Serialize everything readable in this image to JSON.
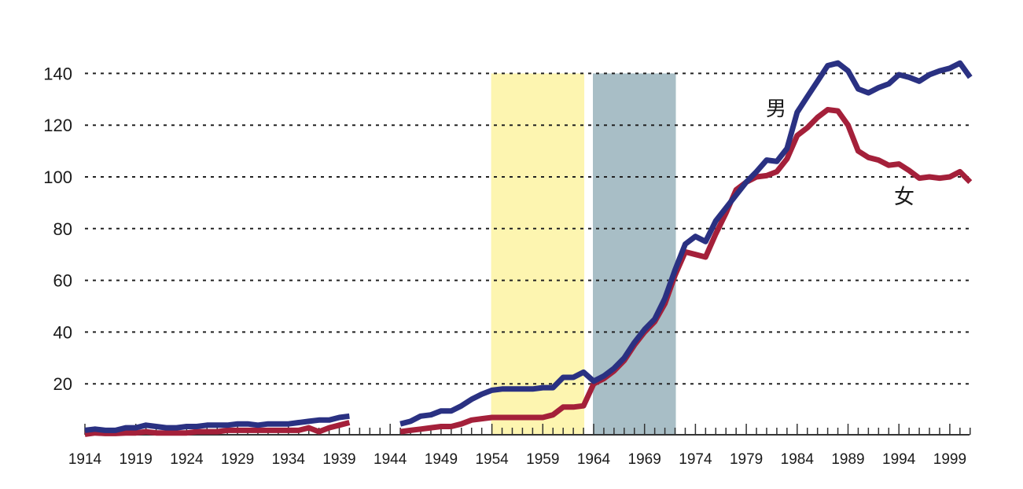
{
  "chart_data": {
    "type": "line",
    "title": "",
    "xlabel": "",
    "ylabel": "",
    "xlim": [
      1914,
      2001
    ],
    "ylim": [
      0,
      140
    ],
    "grid": true,
    "yticks": [
      20,
      40,
      60,
      80,
      100,
      120,
      140
    ],
    "xtick_labels": [
      1914,
      1919,
      1924,
      1929,
      1934,
      1939,
      1944,
      1949,
      1954,
      1959,
      1964,
      1969,
      1974,
      1979,
      1984,
      1989,
      1994,
      1999
    ],
    "shaded_periods": [
      {
        "name": "period-1",
        "from": 1954,
        "to": 1963,
        "color": "#fdf5b0"
      },
      {
        "name": "period-2",
        "from": 1964,
        "to": 1972,
        "color": "#a8bec6"
      }
    ],
    "series": [
      {
        "name": "男",
        "color": "#2a3182",
        "segments": [
          {
            "x": [
              1914,
              1915,
              1916,
              1917,
              1918,
              1919,
              1920,
              1921,
              1922,
              1923,
              1924,
              1925,
              1926,
              1927,
              1928,
              1929,
              1930,
              1931,
              1932,
              1933,
              1934,
              1935,
              1936,
              1937,
              1938,
              1939,
              1940
            ],
            "values": [
              2,
              2.5,
              2,
              2,
              3,
              3,
              4,
              3.5,
              3,
              3,
              3.5,
              3.5,
              4,
              4,
              4,
              4.5,
              4.5,
              4,
              4.5,
              4.5,
              4.5,
              5,
              5.5,
              6,
              6,
              7,
              7.5
            ]
          },
          {
            "x": [
              1945,
              1946,
              1947,
              1948,
              1949,
              1950,
              1951,
              1952,
              1953,
              1954,
              1955,
              1956,
              1957,
              1958,
              1959,
              1960,
              1961,
              1962,
              1963,
              1964,
              1965,
              1966,
              1967,
              1968,
              1969,
              1970,
              1971,
              1972,
              1973,
              1974,
              1975,
              1976,
              1977,
              1978,
              1979,
              1980,
              1981,
              1982,
              1983,
              1984,
              1985,
              1986,
              1987,
              1988,
              1989,
              1990,
              1991,
              1992,
              1993,
              1994,
              1995,
              1996,
              1997,
              1998,
              1999,
              2000,
              2001
            ],
            "values": [
              4.5,
              5.5,
              7.5,
              8,
              9.5,
              9.5,
              11.5,
              14,
              16,
              17.5,
              18,
              18,
              18,
              18,
              18.5,
              18.5,
              22.5,
              22.5,
              24.5,
              21,
              23,
              26,
              30,
              36,
              41,
              45,
              53,
              64,
              74,
              77,
              75,
              83,
              88,
              93,
              98,
              102,
              106.5,
              106,
              111,
              125,
              131,
              137,
              143,
              144,
              141,
              134,
              132.5,
              134.5,
              136,
              139.5,
              138.5,
              137,
              139.5,
              141,
              142,
              144,
              138.5
            ]
          }
        ]
      },
      {
        "name": "女",
        "color": "#a4203a",
        "segments": [
          {
            "x": [
              1914,
              1915,
              1916,
              1917,
              1918,
              1919,
              1920,
              1921,
              1922,
              1923,
              1924,
              1925,
              1926,
              1927,
              1928,
              1929,
              1930,
              1931,
              1932,
              1933,
              1934,
              1935,
              1936,
              1937,
              1938,
              1939,
              1940
            ],
            "values": [
              0.5,
              1,
              0.8,
              0.8,
              1,
              1,
              1.5,
              1,
              1,
              1,
              1,
              1.5,
              1.5,
              1.5,
              2,
              2,
              2,
              2,
              2,
              2,
              2,
              2,
              3,
              1.5,
              3,
              4,
              5
            ]
          },
          {
            "x": [
              1945,
              1946,
              1947,
              1948,
              1949,
              1950,
              1951,
              1952,
              1953,
              1954,
              1955,
              1956,
              1957,
              1958,
              1959,
              1960,
              1961,
              1962,
              1963,
              1964,
              1965,
              1966,
              1967,
              1968,
              1969,
              1970,
              1971,
              1972,
              1973,
              1974,
              1975,
              1976,
              1977,
              1978,
              1979,
              1980,
              1981,
              1982,
              1983,
              1984,
              1985,
              1986,
              1987,
              1988,
              1989,
              1990,
              1991,
              1992,
              1993,
              1994,
              1995,
              1996,
              1997,
              1998,
              1999,
              2000,
              2001
            ],
            "values": [
              1.5,
              2,
              2.5,
              3,
              3.5,
              3.5,
              4.5,
              6,
              6.5,
              7,
              7,
              7,
              7,
              7,
              7,
              8,
              11,
              11,
              11.5,
              20,
              22,
              25,
              29,
              35,
              40,
              44,
              51,
              62,
              71,
              70,
              69,
              78,
              86,
              95,
              98,
              100,
              100.5,
              102,
              107,
              116,
              119,
              123,
              126,
              125.5,
              120,
              110,
              107.5,
              106.5,
              104.5,
              105,
              102.5,
              99.5,
              100,
              99.5,
              100,
              102,
              98
            ]
          }
        ]
      }
    ],
    "annotations": [
      {
        "text": "男",
        "series": "男"
      },
      {
        "text": "女",
        "series": "女"
      }
    ]
  }
}
